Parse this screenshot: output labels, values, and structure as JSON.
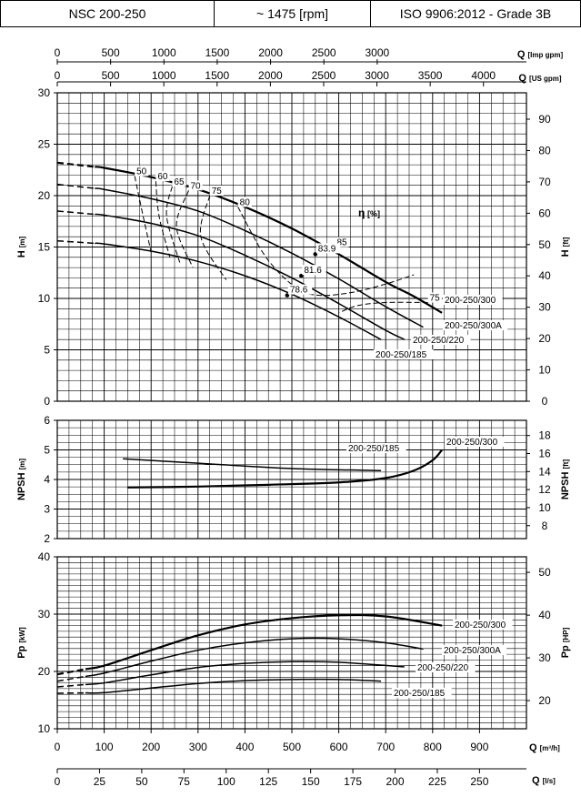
{
  "header": {
    "model": "NSC 200-250",
    "speed": "~ 1475 [rpm]",
    "standard": "ISO 9906:2012 - Grade 3B"
  },
  "chart_data": {
    "type": "line",
    "top_axes": [
      {
        "label": "Q [Imp gpm]",
        "ticks": [
          0,
          500,
          1000,
          1500,
          2000,
          2500,
          3000
        ]
      },
      {
        "label": "Q [US gpm]",
        "ticks": [
          0,
          500,
          1000,
          1500,
          2000,
          2500,
          3000,
          3500,
          4000
        ]
      }
    ],
    "bottom_axes": [
      {
        "label": "Q [m³/h]",
        "ticks": [
          0,
          100,
          200,
          300,
          400,
          500,
          600,
          700,
          800,
          900
        ]
      },
      {
        "label": "Q [l/s]",
        "ticks": [
          0,
          25,
          50,
          75,
          100,
          125,
          150,
          175,
          200,
          225,
          250
        ]
      }
    ],
    "xlim": [
      0,
      1000
    ],
    "head": {
      "ylabel_left": "H [m]",
      "ylabel_right": "H [ft]",
      "ylim": [
        0,
        30
      ],
      "yticks": [
        0,
        5,
        10,
        15,
        20,
        25,
        30
      ],
      "yticks_right": [
        0,
        10,
        20,
        30,
        40,
        50,
        60,
        70,
        80,
        90
      ],
      "series": [
        {
          "name": "200-250/300",
          "x": [
            0,
            100,
            200,
            300,
            400,
            500,
            600,
            700,
            760,
            820
          ],
          "y": [
            23.2,
            22.7,
            21.8,
            20.6,
            18.9,
            16.8,
            14.3,
            11.6,
            10.2,
            8.6
          ],
          "dashed_until": 80
        },
        {
          "name": "200-250/300A",
          "x": [
            0,
            100,
            200,
            300,
            400,
            500,
            600,
            700,
            780
          ],
          "y": [
            21.1,
            20.6,
            19.7,
            18.5,
            16.6,
            14.4,
            11.9,
            9.2,
            7.2
          ],
          "dashed_until": 80
        },
        {
          "name": "200-250/220",
          "x": [
            0,
            100,
            200,
            300,
            400,
            500,
            600,
            700,
            740
          ],
          "y": [
            18.5,
            18.1,
            17.3,
            16.1,
            14.2,
            12.0,
            9.5,
            6.9,
            6.0
          ],
          "dashed_until": 80
        },
        {
          "name": "200-250/185",
          "x": [
            0,
            100,
            200,
            300,
            400,
            500,
            600,
            690
          ],
          "y": [
            15.6,
            15.3,
            14.6,
            13.6,
            12.2,
            10.4,
            8.2,
            6.0
          ],
          "dashed_until": 80
        }
      ],
      "efficiency_label": "η [%]",
      "efficiency_lines": [
        {
          "label": "50",
          "x": [
            165,
            183,
            200
          ],
          "y": [
            21.9,
            18.0,
            14.5
          ]
        },
        {
          "label": "60",
          "x": [
            210,
            217,
            240
          ],
          "y": [
            21.4,
            18.0,
            14.0
          ]
        },
        {
          "label": "65",
          "x": [
            245,
            233,
            261
          ],
          "y": [
            20.9,
            18.0,
            13.5
          ]
        },
        {
          "label": "70",
          "x": [
            280,
            254,
            289
          ],
          "y": [
            20.5,
            17.0,
            13.0
          ]
        },
        {
          "label": "75",
          "x": [
            325,
            306,
            360
          ],
          "y": [
            20.0,
            16.0,
            11.8
          ]
        },
        {
          "label": "80",
          "x": [
            385,
            445,
            510,
            560,
            630,
            700,
            760
          ],
          "y": [
            18.9,
            14.0,
            11.0,
            10.3,
            10.6,
            11.4,
            12.3
          ]
        },
        {
          "label": "75",
          "x": [
            790,
            700,
            640,
            600
          ],
          "y": [
            9.6,
            9.6,
            9.3,
            8.6
          ]
        }
      ],
      "efficiency_values": [
        {
          "label": "85",
          "x": 590,
          "y": 14.9
        },
        {
          "label": "83.9",
          "x": 550,
          "y": 14.3
        },
        {
          "label": "81.6",
          "x": 520,
          "y": 12.2
        },
        {
          "label": "78.6",
          "x": 490,
          "y": 10.3
        }
      ]
    },
    "npsh": {
      "ylabel_left": "NPSH [m]",
      "ylabel_right": "NPSH [ft]",
      "ylim": [
        2,
        6
      ],
      "yticks": [
        2,
        3,
        4,
        5,
        6
      ],
      "yticks_right": [
        8,
        10,
        12,
        14,
        16,
        18
      ],
      "series": [
        {
          "name": "200-250/300",
          "x": [
            150,
            300,
            450,
            600,
            700,
            760,
            800,
            820
          ],
          "y": [
            3.73,
            3.76,
            3.82,
            3.9,
            4.05,
            4.3,
            4.65,
            5.0
          ]
        },
        {
          "name": "200-250/185",
          "x": [
            140,
            300,
            500,
            690
          ],
          "y": [
            4.7,
            4.55,
            4.37,
            4.3
          ]
        }
      ]
    },
    "power": {
      "ylabel_left": "Pp [kW]",
      "ylabel_right": "Pp [HP]",
      "ylim": [
        10,
        40
      ],
      "yticks": [
        10,
        20,
        30,
        40
      ],
      "yticks_right": [
        20,
        30,
        40,
        50
      ],
      "series": [
        {
          "name": "200-250/300",
          "x": [
            0,
            100,
            200,
            300,
            400,
            500,
            600,
            700,
            820
          ],
          "y": [
            19.5,
            21.0,
            23.7,
            26.3,
            28.2,
            29.3,
            29.8,
            29.6,
            28.0
          ],
          "dashed_until": 60
        },
        {
          "name": "200-250/300A",
          "x": [
            0,
            100,
            200,
            300,
            400,
            500,
            600,
            700,
            780
          ],
          "y": [
            18.3,
            19.7,
            21.8,
            23.7,
            25.0,
            25.7,
            25.7,
            25.0,
            23.9
          ],
          "dashed_until": 60
        },
        {
          "name": "200-250/220",
          "x": [
            0,
            100,
            200,
            300,
            400,
            500,
            600,
            740
          ],
          "y": [
            17.3,
            18.0,
            19.4,
            20.7,
            21.4,
            21.7,
            21.6,
            20.8
          ],
          "dashed_until": 60
        },
        {
          "name": "200-250/185",
          "x": [
            0,
            100,
            200,
            300,
            400,
            500,
            600,
            690
          ],
          "y": [
            16.2,
            16.3,
            17.1,
            17.9,
            18.4,
            18.6,
            18.6,
            18.3
          ],
          "dashed_until": 60
        }
      ]
    }
  }
}
